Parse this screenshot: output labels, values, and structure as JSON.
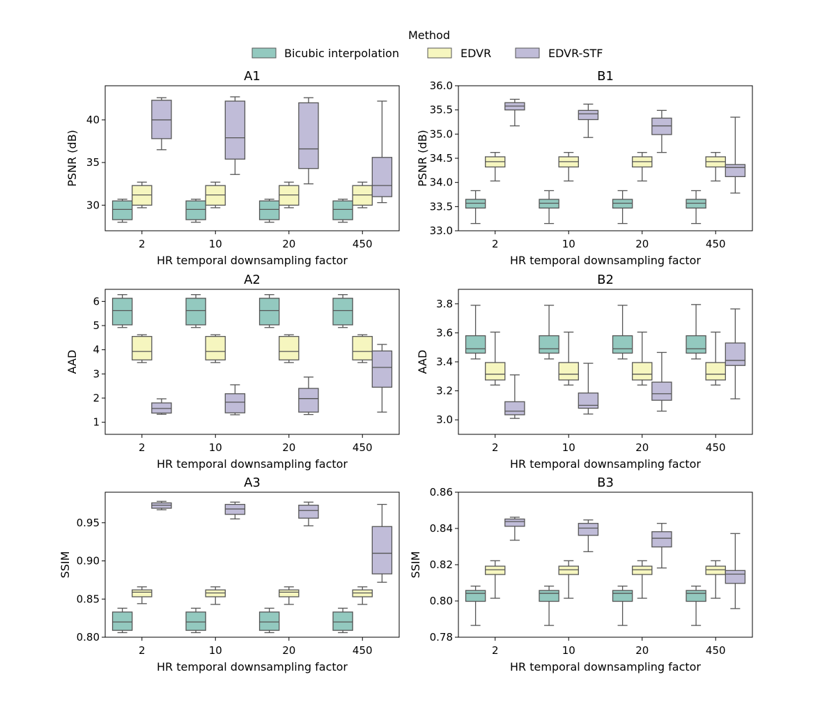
{
  "legend": {
    "title": "Method",
    "entries": [
      {
        "name": "Bicubic interpolation",
        "color": "#93c9bf"
      },
      {
        "name": "EDVR",
        "color": "#f6f6bf"
      },
      {
        "name": "EDVR-STF",
        "color": "#c0bcd8"
      }
    ]
  },
  "chart_data": [
    {
      "type": "box",
      "title": "A1",
      "xlabel": "HR temporal downsampling factor",
      "ylabel": "PSNR (dB)",
      "categories": [
        "2",
        "10",
        "20",
        "450"
      ],
      "ylim": [
        27,
        44
      ],
      "yticks": [
        30,
        35,
        40
      ],
      "series": [
        {
          "name": "Bicubic interpolation",
          "boxes": [
            [
              28.0,
              28.3,
              29.5,
              30.5,
              30.7
            ],
            [
              28.0,
              28.3,
              29.5,
              30.5,
              30.7
            ],
            [
              28.0,
              28.3,
              29.5,
              30.5,
              30.7
            ],
            [
              28.0,
              28.3,
              29.5,
              30.5,
              30.7
            ]
          ]
        },
        {
          "name": "EDVR",
          "boxes": [
            [
              29.7,
              30.0,
              31.2,
              32.3,
              32.7
            ],
            [
              29.7,
              30.0,
              31.2,
              32.3,
              32.7
            ],
            [
              29.7,
              30.0,
              31.2,
              32.3,
              32.7
            ],
            [
              29.7,
              30.0,
              31.2,
              32.3,
              32.7
            ]
          ]
        },
        {
          "name": "EDVR-STF",
          "boxes": [
            [
              36.5,
              37.8,
              40.0,
              42.3,
              42.6
            ],
            [
              33.6,
              35.4,
              37.9,
              42.2,
              42.7
            ],
            [
              32.5,
              34.3,
              36.6,
              42.0,
              42.6
            ],
            [
              30.3,
              31.0,
              32.3,
              35.6,
              42.2
            ]
          ]
        }
      ]
    },
    {
      "type": "box",
      "title": "B1",
      "xlabel": "HR temporal downsampling factor",
      "ylabel": "PSNR (dB)",
      "categories": [
        "2",
        "10",
        "20",
        "450"
      ],
      "ylim": [
        33.0,
        36.0
      ],
      "yticks": [
        "33.0",
        "33.5",
        "34.0",
        "34.5",
        "35.0",
        "35.5",
        "36.0"
      ],
      "series": [
        {
          "name": "Bicubic interpolation",
          "boxes": [
            [
              33.15,
              33.47,
              33.57,
              33.65,
              33.83
            ],
            [
              33.15,
              33.47,
              33.57,
              33.65,
              33.83
            ],
            [
              33.15,
              33.47,
              33.57,
              33.65,
              33.83
            ],
            [
              33.15,
              33.47,
              33.57,
              33.65,
              33.83
            ]
          ]
        },
        {
          "name": "EDVR",
          "boxes": [
            [
              34.03,
              34.32,
              34.43,
              34.53,
              34.62
            ],
            [
              34.03,
              34.32,
              34.43,
              34.53,
              34.62
            ],
            [
              34.03,
              34.32,
              34.43,
              34.53,
              34.62
            ],
            [
              34.03,
              34.32,
              34.43,
              34.53,
              34.62
            ]
          ]
        },
        {
          "name": "EDVR-STF",
          "boxes": [
            [
              35.17,
              35.5,
              35.58,
              35.65,
              35.72
            ],
            [
              34.93,
              35.3,
              35.42,
              35.49,
              35.62
            ],
            [
              34.62,
              34.99,
              35.17,
              35.33,
              35.49
            ],
            [
              33.78,
              34.12,
              34.31,
              34.37,
              35.35
            ]
          ]
        }
      ]
    },
    {
      "type": "box",
      "title": "A2",
      "xlabel": "HR temporal downsampling factor",
      "ylabel": "AAD",
      "categories": [
        "2",
        "10",
        "20",
        "450"
      ],
      "ylim": [
        0.5,
        6.5
      ],
      "yticks": [
        1,
        2,
        3,
        4,
        5,
        6
      ],
      "series": [
        {
          "name": "Bicubic interpolation",
          "boxes": [
            [
              4.92,
              5.03,
              5.62,
              6.13,
              6.28
            ],
            [
              4.92,
              5.03,
              5.62,
              6.13,
              6.28
            ],
            [
              4.92,
              5.03,
              5.62,
              6.13,
              6.28
            ],
            [
              4.92,
              5.03,
              5.62,
              6.13,
              6.28
            ]
          ]
        },
        {
          "name": "EDVR",
          "boxes": [
            [
              3.47,
              3.58,
              3.93,
              4.55,
              4.62
            ],
            [
              3.47,
              3.58,
              3.93,
              4.55,
              4.62
            ],
            [
              3.47,
              3.58,
              3.93,
              4.55,
              4.62
            ],
            [
              3.47,
              3.58,
              3.93,
              4.55,
              4.62
            ]
          ]
        },
        {
          "name": "EDVR-STF",
          "boxes": [
            [
              1.33,
              1.38,
              1.57,
              1.8,
              1.97
            ],
            [
              1.31,
              1.39,
              1.83,
              2.18,
              2.55
            ],
            [
              1.32,
              1.42,
              1.98,
              2.4,
              2.87
            ],
            [
              1.42,
              2.45,
              3.27,
              3.95,
              4.22
            ]
          ]
        }
      ]
    },
    {
      "type": "box",
      "title": "B2",
      "xlabel": "HR temporal downsampling factor",
      "ylabel": "AAD",
      "categories": [
        "2",
        "10",
        "20",
        "450"
      ],
      "ylim": [
        2.9,
        3.9
      ],
      "yticks": [
        "3.0",
        "3.2",
        "3.4",
        "3.6",
        "3.8"
      ],
      "series": [
        {
          "name": "Bicubic interpolation",
          "boxes": [
            [
              3.42,
              3.46,
              3.49,
              3.58,
              3.79
            ],
            [
              3.42,
              3.46,
              3.49,
              3.58,
              3.79
            ],
            [
              3.42,
              3.46,
              3.49,
              3.58,
              3.79
            ],
            [
              3.42,
              3.46,
              3.49,
              3.58,
              3.795
            ]
          ]
        },
        {
          "name": "EDVR",
          "boxes": [
            [
              3.24,
              3.275,
              3.315,
              3.395,
              3.605
            ],
            [
              3.24,
              3.275,
              3.315,
              3.395,
              3.605
            ],
            [
              3.24,
              3.275,
              3.315,
              3.395,
              3.605
            ],
            [
              3.24,
              3.275,
              3.315,
              3.395,
              3.605
            ]
          ]
        },
        {
          "name": "EDVR-STF",
          "boxes": [
            [
              3.01,
              3.035,
              3.06,
              3.125,
              3.31
            ],
            [
              3.04,
              3.08,
              3.1,
              3.185,
              3.39
            ],
            [
              3.06,
              3.135,
              3.18,
              3.26,
              3.465
            ],
            [
              3.145,
              3.375,
              3.41,
              3.53,
              3.765
            ]
          ]
        }
      ]
    },
    {
      "type": "box",
      "title": "A3",
      "xlabel": "HR temporal downsampling factor",
      "ylabel": "SSIM",
      "categories": [
        "2",
        "10",
        "20",
        "450"
      ],
      "ylim": [
        0.8,
        0.99
      ],
      "yticks": [
        "0.80",
        "0.85",
        "0.90",
        "0.95"
      ],
      "series": [
        {
          "name": "Bicubic interpolation",
          "boxes": [
            [
              0.806,
              0.809,
              0.82,
              0.833,
              0.838
            ],
            [
              0.806,
              0.809,
              0.82,
              0.833,
              0.838
            ],
            [
              0.806,
              0.809,
              0.82,
              0.833,
              0.838
            ],
            [
              0.806,
              0.809,
              0.82,
              0.833,
              0.838
            ]
          ]
        },
        {
          "name": "EDVR",
          "boxes": [
            [
              0.844,
              0.853,
              0.859,
              0.862,
              0.866
            ],
            [
              0.843,
              0.853,
              0.858,
              0.862,
              0.866
            ],
            [
              0.843,
              0.853,
              0.859,
              0.862,
              0.866
            ],
            [
              0.843,
              0.853,
              0.858,
              0.862,
              0.866
            ]
          ]
        },
        {
          "name": "EDVR-STF",
          "boxes": [
            [
              0.967,
              0.969,
              0.973,
              0.976,
              0.978
            ],
            [
              0.955,
              0.961,
              0.968,
              0.974,
              0.977
            ],
            [
              0.946,
              0.956,
              0.966,
              0.973,
              0.977
            ],
            [
              0.872,
              0.883,
              0.91,
              0.945,
              0.974
            ]
          ]
        }
      ]
    },
    {
      "type": "box",
      "title": "B3",
      "xlabel": "HR temporal downsampling factor",
      "ylabel": "SSIM",
      "categories": [
        "2",
        "10",
        "20",
        "450"
      ],
      "ylim": [
        0.78,
        0.86
      ],
      "yticks": [
        "0.78",
        "0.80",
        "0.82",
        "0.84",
        "0.86"
      ],
      "series": [
        {
          "name": "Bicubic interpolation",
          "boxes": [
            [
              0.7865,
              0.7998,
              0.8042,
              0.8058,
              0.8082
            ],
            [
              0.7865,
              0.7998,
              0.8042,
              0.8058,
              0.8082
            ],
            [
              0.7865,
              0.7998,
              0.8042,
              0.8058,
              0.8082
            ],
            [
              0.7865,
              0.7998,
              0.8042,
              0.8058,
              0.8082
            ]
          ]
        },
        {
          "name": "EDVR",
          "boxes": [
            [
              0.8015,
              0.8146,
              0.8172,
              0.8192,
              0.8222
            ],
            [
              0.8015,
              0.8146,
              0.8172,
              0.8192,
              0.8222
            ],
            [
              0.8015,
              0.8146,
              0.8172,
              0.8192,
              0.8222
            ],
            [
              0.8015,
              0.8146,
              0.8172,
              0.8192,
              0.8222
            ]
          ]
        },
        {
          "name": "EDVR-STF",
          "boxes": [
            [
              0.8335,
              0.8412,
              0.8438,
              0.8452,
              0.8462
            ],
            [
              0.8272,
              0.8362,
              0.8402,
              0.8428,
              0.8447
            ],
            [
              0.8182,
              0.8298,
              0.8346,
              0.8382,
              0.8428
            ],
            [
              0.7958,
              0.8097,
              0.8148,
              0.8168,
              0.8372
            ]
          ]
        }
      ]
    }
  ]
}
